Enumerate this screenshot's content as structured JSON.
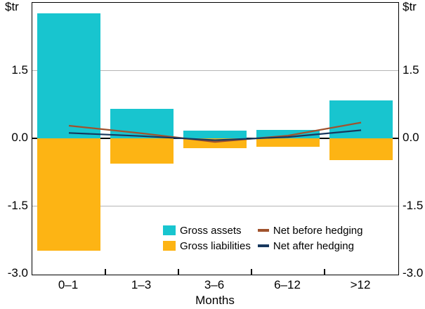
{
  "figure": {
    "unit_left": "$tr",
    "unit_right": "$tr",
    "x_axis_title": "Months"
  },
  "axes": {
    "ylim": [
      -3.0,
      3.0
    ],
    "yticks": [
      {
        "label": "1.5",
        "value": 1.5
      },
      {
        "label": "0.0",
        "value": 0.0
      },
      {
        "label": "-1.5",
        "value": -1.5
      },
      {
        "label": "-3.0",
        "value": -3.0
      }
    ],
    "grid_color": "#b5b5b5",
    "legend_position": "inside-bottom-right"
  },
  "chart_data": {
    "type": "bar+line",
    "title": "",
    "xlabel": "Months",
    "ylabel": "$tr",
    "ylim": [
      -3.0,
      3.0
    ],
    "yticks": [
      1.5,
      0.0,
      -1.5,
      -3.0
    ],
    "categories": [
      "0–1",
      "1–3",
      "3–6",
      "6–12",
      ">12"
    ],
    "series": [
      {
        "name": "Gross assets",
        "type": "bar",
        "color": "#18C5CF",
        "values": [
          2.77,
          0.66,
          0.17,
          0.19,
          0.84
        ]
      },
      {
        "name": "Gross liabilities",
        "type": "bar",
        "color": "#FDB414",
        "values": [
          -2.48,
          -0.56,
          -0.22,
          -0.18,
          -0.48
        ]
      },
      {
        "name": "Net before hedging",
        "type": "line",
        "color": "#A0522D",
        "values": [
          0.28,
          0.11,
          -0.08,
          0.06,
          0.35
        ]
      },
      {
        "name": "Net after hedging",
        "type": "line",
        "color": "#17375E",
        "values": [
          0.12,
          0.05,
          -0.04,
          0.03,
          0.18
        ]
      }
    ]
  }
}
